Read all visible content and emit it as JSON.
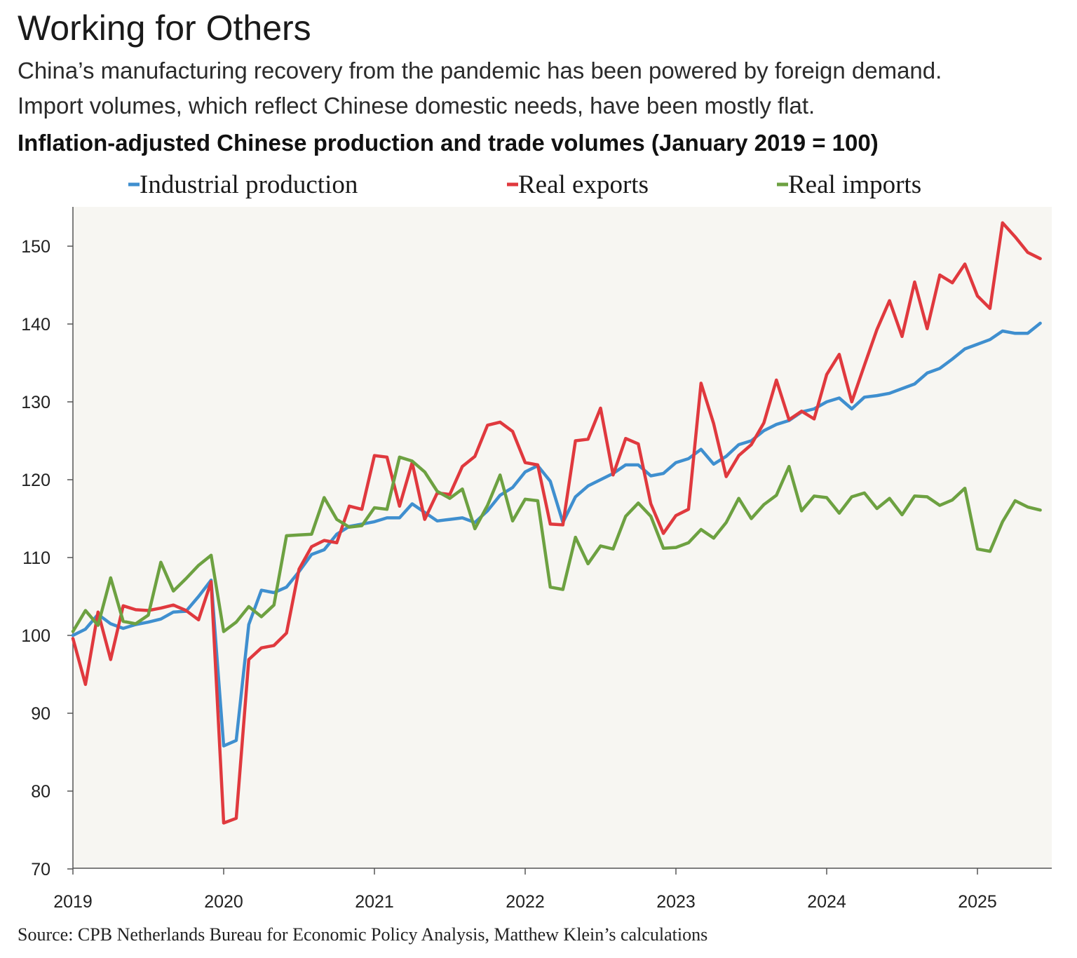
{
  "title": "Working for Others",
  "subtitle_lines": [
    "China’s manufacturing recovery from the pandemic has been powered by foreign demand.",
    "Import volumes, which reflect Chinese domestic needs, have been mostly flat."
  ],
  "source": "Source: CPB Netherlands Bureau for Economic Policy Analysis, Matthew Klein’s calculations",
  "chart_data": {
    "type": "line",
    "title": "Inflation-adjusted Chinese production and trade volumes (January 2019 = 100)",
    "xlabel": "",
    "ylabel": "",
    "x_start": "2019-01",
    "x_frequency": "monthly",
    "ylim": [
      70,
      155
    ],
    "yticks": [
      70,
      80,
      90,
      100,
      110,
      120,
      130,
      140,
      150
    ],
    "xticks": [
      "2019",
      "2020",
      "2021",
      "2022",
      "2023",
      "2024",
      "2025"
    ],
    "grid": false,
    "legend_position": "top",
    "background": "#f7f6f2",
    "series": [
      {
        "name": "Industrial production",
        "color": "#3f8fcf",
        "values": [
          100,
          100.8,
          102.7,
          101.5,
          100.9,
          101.4,
          101.7,
          102.1,
          103,
          103.1,
          105,
          107.1,
          85.8,
          86.5,
          101.4,
          105.8,
          105.5,
          106.2,
          108.2,
          110.4,
          111,
          113,
          114,
          114.3,
          114.6,
          115.1,
          115.1,
          116.9,
          115.8,
          114.7,
          114.9,
          115.1,
          114.5,
          116,
          118,
          119,
          121,
          121.8,
          119.8,
          114.5,
          117.8,
          119.2,
          120,
          120.8,
          121.9,
          121.9,
          120.5,
          120.8,
          122.2,
          122.7,
          123.9,
          122,
          123,
          124.5,
          125,
          126.3,
          127.1,
          127.6,
          128.7,
          129.1,
          130,
          130.5,
          129.1,
          130.6,
          130.8,
          131.1,
          131.7,
          132.3,
          133.7,
          134.3,
          135.5,
          136.8,
          137.4,
          138,
          139.1,
          138.8,
          138.8,
          140.1
        ]
      },
      {
        "name": "Real exports",
        "color": "#e0393e",
        "values": [
          99.6,
          93.7,
          103,
          96.9,
          103.8,
          103.3,
          103.2,
          103.5,
          103.9,
          103.2,
          102,
          106.9,
          75.9,
          76.5,
          96.9,
          98.4,
          98.7,
          100.3,
          108.5,
          111.4,
          112.2,
          111.9,
          116.6,
          116.2,
          123.1,
          122.9,
          116.6,
          122.2,
          114.9,
          118.3,
          118.1,
          121.7,
          123,
          127,
          127.4,
          126.2,
          122.2,
          121.9,
          114.3,
          114.2,
          125,
          125.2,
          129.2,
          120.6,
          125.3,
          124.6,
          116.9,
          113.1,
          115.4,
          116.2,
          132.4,
          127.2,
          120.4,
          123.1,
          124.5,
          127.3,
          132.8,
          127.7,
          128.8,
          127.8,
          133.5,
          136.1,
          130,
          134.7,
          139.3,
          143,
          138.4,
          145.4,
          139.4,
          146.3,
          145.3,
          147.7,
          143.6,
          142,
          153,
          151.2,
          149.2,
          148.4
        ]
      },
      {
        "name": "Real imports",
        "color": "#6da141",
        "values": [
          100.5,
          103.2,
          101.3,
          107.4,
          101.8,
          101.5,
          102.6,
          109.4,
          105.7,
          107.3,
          109,
          110.3,
          100.5,
          101.7,
          103.7,
          102.4,
          103.9,
          112.8,
          112.9,
          113,
          117.7,
          114.9,
          113.9,
          114.1,
          116.4,
          116.2,
          122.9,
          122.4,
          121,
          118.5,
          117.6,
          118.8,
          113.7,
          116.7,
          120.6,
          114.7,
          117.5,
          117.3,
          106.2,
          105.9,
          112.6,
          109.2,
          111.5,
          111.1,
          115.3,
          117,
          115.3,
          111.2,
          111.3,
          111.9,
          113.6,
          112.5,
          114.5,
          117.6,
          115,
          116.8,
          118,
          121.7,
          116,
          117.9,
          117.7,
          115.7,
          117.8,
          118.3,
          116.3,
          117.6,
          115.5,
          117.9,
          117.8,
          116.7,
          117.4,
          118.9,
          111.1,
          110.8,
          114.6,
          117.3,
          116.5,
          116.1
        ]
      }
    ]
  }
}
